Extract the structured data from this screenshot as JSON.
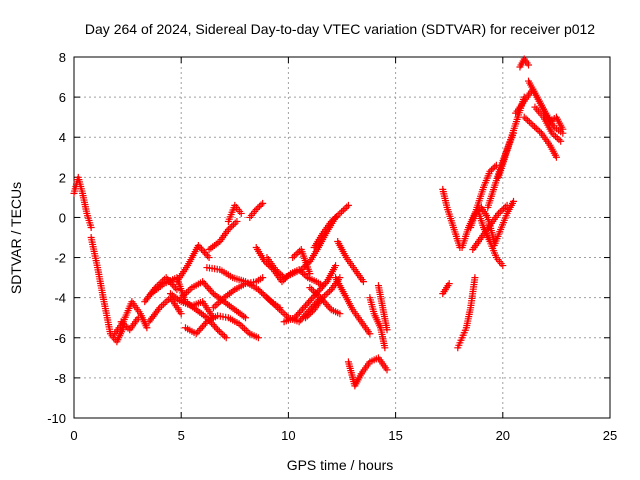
{
  "chart_data": {
    "type": "scatter",
    "title": "Day 264 of 2024, Sidereal Day-to-day VTEC variation (SDTVAR) for receiver p012",
    "xlabel": "GPS time / hours",
    "ylabel": "SDTVAR / TECUs",
    "xlim": [
      0,
      25
    ],
    "ylim": [
      -10,
      8
    ],
    "xticks": [
      "0",
      "5",
      "10",
      "15",
      "20",
      "25"
    ],
    "yticks": [
      "-10",
      "-8",
      "-6",
      "-4",
      "-2",
      "0",
      "2",
      "4",
      "6",
      "8"
    ],
    "grid": true,
    "marker": "plus",
    "color": "#ff0000",
    "series": [
      {
        "x": [
          0.0,
          0.2,
          0.4,
          0.6,
          0.8
        ],
        "y": [
          1.2,
          2.0,
          1.2,
          0.2,
          -0.5
        ]
      },
      {
        "x": [
          0.8,
          1.1,
          1.4,
          1.7,
          2.0,
          2.3
        ],
        "y": [
          -1.0,
          -2.5,
          -4.2,
          -5.8,
          -6.2,
          -5.5
        ]
      },
      {
        "x": [
          1.9,
          2.3,
          2.7,
          3.1,
          3.4
        ],
        "y": [
          -5.8,
          -5.2,
          -4.2,
          -4.8,
          -5.5
        ]
      },
      {
        "x": [
          2.2,
          2.6,
          3.0
        ],
        "y": [
          -5.2,
          -5.6,
          -5.0
        ]
      },
      {
        "x": [
          3.3,
          3.8,
          4.3,
          4.8
        ],
        "y": [
          -4.2,
          -3.5,
          -3.0,
          -3.6
        ]
      },
      {
        "x": [
          3.5,
          4.0,
          4.5,
          5.0
        ],
        "y": [
          -5.2,
          -4.5,
          -4.0,
          -4.8
        ]
      },
      {
        "x": [
          3.6,
          4.2,
          4.8,
          5.2,
          5.7,
          6.2,
          6.7,
          7.1
        ],
        "y": [
          -3.8,
          -3.3,
          -3.0,
          -4.2,
          -4.6,
          -5.0,
          -5.6,
          -6.0
        ]
      },
      {
        "x": [
          4.5,
          5.0,
          5.5,
          6.0,
          6.5
        ],
        "y": [
          -3.8,
          -4.2,
          -4.4,
          -4.2,
          -5.0
        ]
      },
      {
        "x": [
          5.2,
          5.7,
          6.2,
          6.7,
          7.2,
          7.7,
          8.2,
          8.6
        ],
        "y": [
          -5.5,
          -5.8,
          -5.2,
          -4.9,
          -5.0,
          -5.3,
          -5.8,
          -6.0
        ]
      },
      {
        "x": [
          5.0,
          5.5,
          6.0,
          6.5,
          7.0,
          7.5,
          8.0
        ],
        "y": [
          -4.0,
          -3.5,
          -3.2,
          -3.8,
          -4.2,
          -4.6,
          -5.0
        ]
      },
      {
        "x": [
          4.8,
          5.3,
          5.8,
          6.3
        ],
        "y": [
          -3.2,
          -2.4,
          -1.4,
          -2.0
        ]
      },
      {
        "x": [
          6.2,
          6.8,
          7.4,
          8.0,
          8.6,
          9.2,
          9.6
        ],
        "y": [
          -2.5,
          -2.6,
          -3.0,
          -3.2,
          -3.6,
          -4.2,
          -4.5
        ]
      },
      {
        "x": [
          6.5,
          7.0,
          7.5,
          8.0,
          8.5,
          8.8
        ],
        "y": [
          -4.5,
          -4.0,
          -3.6,
          -3.3,
          -3.2,
          -3.0
        ]
      },
      {
        "x": [
          6.3,
          6.8,
          7.2,
          7.6
        ],
        "y": [
          -1.6,
          -1.2,
          -0.6,
          -0.2
        ]
      },
      {
        "x": [
          7.2,
          7.5,
          7.8
        ],
        "y": [
          -0.2,
          0.6,
          0.2
        ]
      },
      {
        "x": [
          8.2,
          8.5,
          8.8
        ],
        "y": [
          0.0,
          0.4,
          0.7
        ]
      },
      {
        "x": [
          8.5,
          8.9,
          9.3,
          9.7,
          10.1,
          10.5,
          10.9,
          11.3,
          11.6
        ],
        "y": [
          -1.5,
          -2.2,
          -2.6,
          -3.2,
          -2.8,
          -2.6,
          -3.0,
          -3.2,
          -3.4
        ]
      },
      {
        "x": [
          9.0,
          9.4,
          9.8,
          10.2,
          10.6,
          11.0,
          11.4,
          11.8,
          12.2
        ],
        "y": [
          -2.0,
          -2.6,
          -3.0,
          -2.8,
          -2.6,
          -2.2,
          -1.5,
          -0.7,
          0.0
        ]
      },
      {
        "x": [
          9.0,
          9.5,
          10.0,
          10.5,
          11.0,
          11.5
        ],
        "y": [
          -4.0,
          -4.5,
          -5.0,
          -5.2,
          -4.6,
          -4.0
        ]
      },
      {
        "x": [
          9.8,
          10.3,
          10.8,
          11.3,
          11.8,
          12.2
        ],
        "y": [
          -5.2,
          -5.0,
          -4.4,
          -3.8,
          -3.2,
          -2.4
        ]
      },
      {
        "x": [
          10.2,
          10.6,
          11.0
        ],
        "y": [
          -2.0,
          -1.6,
          -2.8
        ]
      },
      {
        "x": [
          10.8,
          11.2,
          11.6,
          12.0,
          12.4
        ],
        "y": [
          -5.0,
          -4.6,
          -4.0,
          -3.6,
          -3.0
        ]
      },
      {
        "x": [
          11.0,
          11.5,
          12.0,
          12.4
        ],
        "y": [
          -3.5,
          -4.0,
          -4.6,
          -4.8
        ]
      },
      {
        "x": [
          11.2,
          11.6,
          12.0,
          12.4,
          12.8
        ],
        "y": [
          -1.5,
          -0.8,
          -0.2,
          0.2,
          0.6
        ]
      },
      {
        "x": [
          12.2,
          12.6,
          13.0,
          13.4,
          13.8
        ],
        "y": [
          -3.0,
          -3.8,
          -4.6,
          -5.2,
          -5.8
        ]
      },
      {
        "x": [
          12.3,
          12.7,
          13.1,
          13.5
        ],
        "y": [
          -1.2,
          -2.0,
          -2.6,
          -3.2
        ]
      },
      {
        "x": [
          12.8,
          13.1,
          13.4
        ],
        "y": [
          -7.2,
          -8.4,
          -7.8
        ]
      },
      {
        "x": [
          13.4,
          13.8,
          14.2,
          14.6
        ],
        "y": [
          -7.8,
          -7.2,
          -7.0,
          -7.6
        ]
      },
      {
        "x": [
          13.8,
          14.0,
          14.3,
          14.5
        ],
        "y": [
          -4.0,
          -4.8,
          -5.5,
          -6.5
        ]
      },
      {
        "x": [
          14.2,
          14.4,
          14.6
        ],
        "y": [
          -3.4,
          -4.5,
          -5.6
        ]
      },
      {
        "x": [
          17.2,
          17.4,
          17.7,
          18.0
        ],
        "y": [
          1.4,
          0.5,
          -0.5,
          -1.5
        ]
      },
      {
        "x": [
          17.2,
          17.5
        ],
        "y": [
          -3.8,
          -3.3
        ]
      },
      {
        "x": [
          17.9,
          18.1,
          18.3,
          18.5,
          18.7
        ],
        "y": [
          -6.5,
          -6.0,
          -5.5,
          -4.5,
          -3.0
        ]
      },
      {
        "x": [
          18.1,
          18.4,
          18.7,
          19.0,
          19.3,
          19.6
        ],
        "y": [
          -1.5,
          -0.5,
          0.2,
          0.5,
          0.0,
          -1.2
        ]
      },
      {
        "x": [
          18.5,
          18.8,
          19.1,
          19.4,
          19.7
        ],
        "y": [
          -0.5,
          0.5,
          1.5,
          2.3,
          2.6
        ]
      },
      {
        "x": [
          18.8,
          19.1,
          19.4,
          19.7,
          20.0
        ],
        "y": [
          0.5,
          -0.5,
          -1.2,
          -2.0,
          -2.4
        ]
      },
      {
        "x": [
          18.6,
          19.0,
          19.4,
          19.8,
          20.2
        ],
        "y": [
          -1.6,
          -1.0,
          -0.4,
          0.2,
          0.6
        ]
      },
      {
        "x": [
          19.3,
          19.6,
          19.9,
          20.2,
          20.5
        ],
        "y": [
          0.5,
          1.5,
          2.5,
          3.4,
          4.2
        ]
      },
      {
        "x": [
          19.8,
          20.1,
          20.4,
          20.7,
          21.0
        ],
        "y": [
          2.0,
          3.0,
          4.0,
          5.0,
          6.0
        ]
      },
      {
        "x": [
          19.6,
          19.9,
          20.2,
          20.5
        ],
        "y": [
          -1.4,
          -0.6,
          0.2,
          0.8
        ]
      },
      {
        "x": [
          20.8,
          21.0,
          21.2
        ],
        "y": [
          7.5,
          7.9,
          7.6
        ]
      },
      {
        "x": [
          20.6,
          21.0,
          21.4,
          21.8,
          22.2
        ],
        "y": [
          5.2,
          5.8,
          6.4,
          5.6,
          4.8
        ]
      },
      {
        "x": [
          21.0,
          21.4,
          21.8,
          22.2,
          22.5
        ],
        "y": [
          5.0,
          4.6,
          4.2,
          3.6,
          3.0
        ]
      },
      {
        "x": [
          21.2,
          21.6,
          22.0,
          22.4,
          22.8
        ],
        "y": [
          6.8,
          6.0,
          5.2,
          4.5,
          4.2
        ]
      },
      {
        "x": [
          21.5,
          21.9,
          22.3,
          22.7
        ],
        "y": [
          5.5,
          5.0,
          4.2,
          3.8
        ]
      },
      {
        "x": [
          22.2,
          22.5,
          22.8
        ],
        "y": [
          4.8,
          5.0,
          4.4
        ]
      }
    ]
  }
}
